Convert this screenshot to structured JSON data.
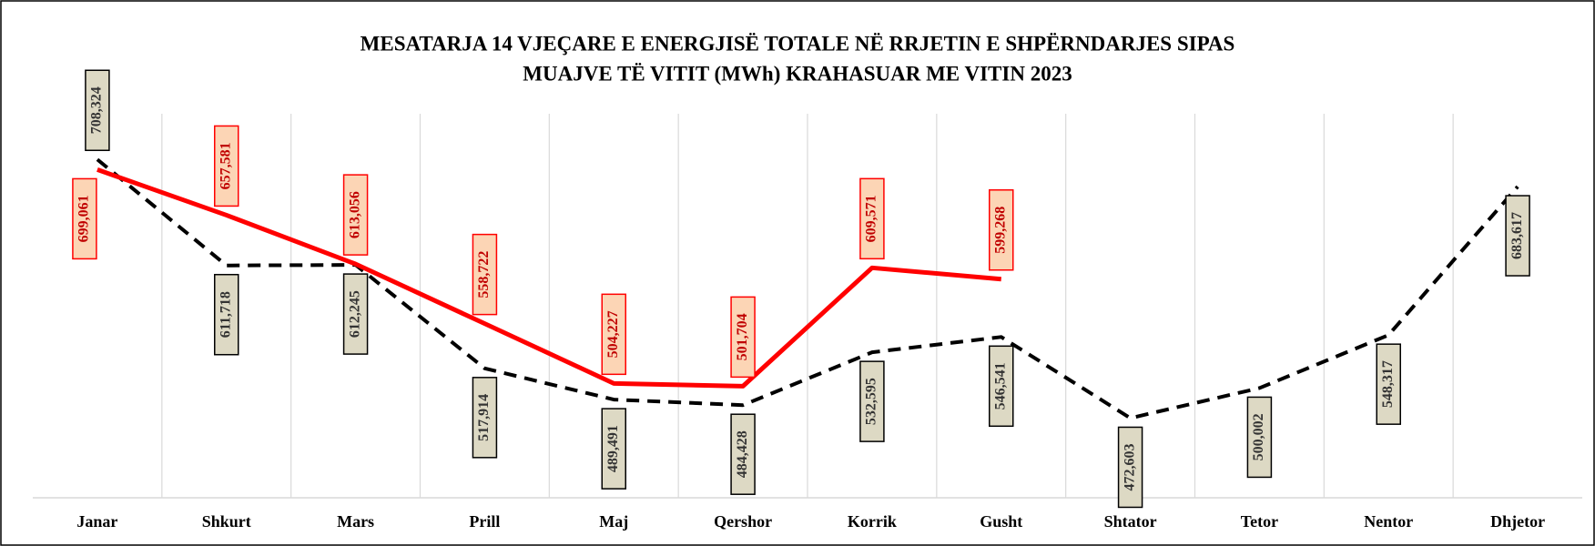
{
  "chart_data": {
    "type": "line",
    "title": [
      "MESATARJA 14 VJEÇARE E ENERGJISË TOTALE NË RRJETIN E SHPËRNDARJES SIPAS",
      "MUAJVE TË VITIT (MWh) KRAHASUAR ME VITIN 2023"
    ],
    "categories": [
      "Janar",
      "Shkurt",
      "Mars",
      "Prill",
      "Maj",
      "Qershor",
      "Korrik",
      "Gusht",
      "Shtator",
      "Tetor",
      "Nentor",
      "Dhjetor"
    ],
    "series": [
      {
        "color": "#000000",
        "dash": true,
        "values": [
          708324,
          611718,
          612245,
          517914,
          489491,
          484428,
          532595,
          546541,
          472603,
          500002,
          548317,
          683617
        ],
        "value_labels": [
          "708,324",
          "611,718",
          "612,245",
          "517,914",
          "489,491",
          "484,428",
          "532,595",
          "546,541",
          "472,603",
          "500,002",
          "548,317",
          "683,617"
        ]
      },
      {
        "color": "#ff0000",
        "dash": false,
        "values": [
          699061,
          657581,
          613056,
          558722,
          504227,
          501704,
          609571,
          599268,
          null,
          null,
          null,
          null
        ],
        "value_labels": [
          "699,061",
          "657,581",
          "613,056",
          "558,722",
          "504,227",
          "501,704",
          "609,571",
          "599,268",
          null,
          null,
          null,
          null
        ]
      }
    ],
    "ylim": [
      400000,
      750000
    ]
  }
}
